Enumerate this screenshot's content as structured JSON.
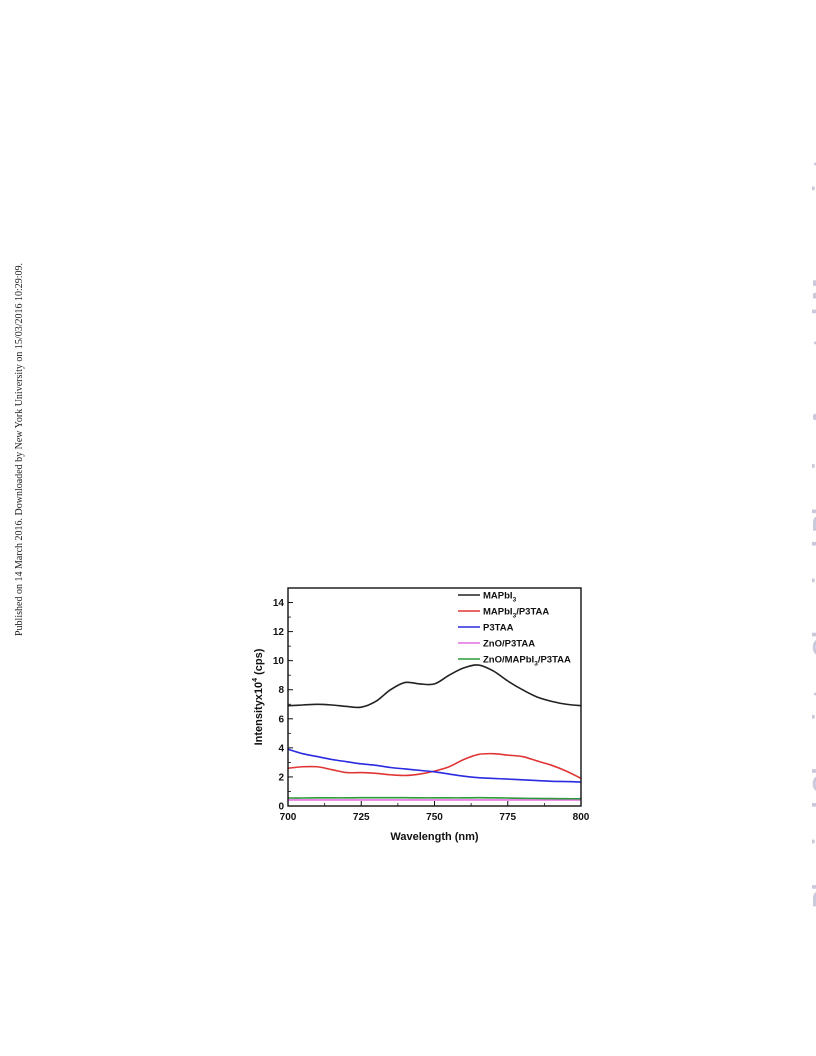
{
  "page": {
    "side_note": "Published on 14 March 2016. Downloaded by New York University on 15/03/2016 10:29:09.",
    "watermark": "Physical Chemistry Chemical Physics Accepted Manuscript"
  },
  "chart_data": {
    "type": "line",
    "xlabel": "Wavelength (nm)",
    "ylabel": "Intensityx10",
    "ylabel_sup": "4",
    "ylabel_unit": " (cps)",
    "xlim": [
      700,
      800
    ],
    "ylim": [
      0,
      15
    ],
    "xticks": [
      700,
      725,
      750,
      775,
      800
    ],
    "yticks": [
      0,
      2,
      4,
      6,
      8,
      10,
      12,
      14
    ],
    "grid": false,
    "legend": "top-right",
    "x": [
      700,
      705,
      710,
      715,
      720,
      725,
      730,
      735,
      740,
      745,
      750,
      755,
      760,
      765,
      770,
      775,
      780,
      785,
      790,
      795,
      800
    ],
    "series": [
      {
        "name": "MAPbI",
        "sub": "3",
        "suffix": "",
        "color": "#222222",
        "values": [
          6.9,
          6.95,
          7.0,
          6.95,
          6.85,
          6.8,
          7.2,
          8.0,
          8.5,
          8.4,
          8.4,
          9.0,
          9.5,
          9.7,
          9.3,
          8.6,
          8.0,
          7.5,
          7.2,
          7.0,
          6.9
        ]
      },
      {
        "name": "MAPbI",
        "sub": "3",
        "suffix": "/P3TAA",
        "color": "#e03535",
        "values": [
          2.6,
          2.7,
          2.7,
          2.5,
          2.3,
          2.3,
          2.25,
          2.15,
          2.1,
          2.2,
          2.4,
          2.7,
          3.2,
          3.55,
          3.6,
          3.5,
          3.4,
          3.1,
          2.8,
          2.4,
          1.9
        ]
      },
      {
        "name": "P3TAA",
        "sub": "",
        "suffix": "",
        "color": "#2a2ae0",
        "values": [
          3.9,
          3.6,
          3.4,
          3.2,
          3.05,
          2.9,
          2.8,
          2.65,
          2.55,
          2.45,
          2.35,
          2.2,
          2.05,
          1.95,
          1.9,
          1.85,
          1.8,
          1.75,
          1.7,
          1.68,
          1.65
        ]
      },
      {
        "name": "ZnO/P3TAA",
        "sub": "",
        "suffix": "",
        "color": "#e46ee4",
        "values": [
          0.42,
          0.42,
          0.42,
          0.42,
          0.42,
          0.42,
          0.42,
          0.42,
          0.42,
          0.42,
          0.42,
          0.42,
          0.42,
          0.42,
          0.42,
          0.42,
          0.42,
          0.42,
          0.42,
          0.42,
          0.42
        ]
      },
      {
        "name": "ZnO/MAPbI",
        "sub": "3",
        "suffix": "/P3TAA",
        "color": "#2a9a3a",
        "values": [
          0.55,
          0.55,
          0.56,
          0.56,
          0.56,
          0.57,
          0.57,
          0.57,
          0.57,
          0.56,
          0.56,
          0.56,
          0.56,
          0.57,
          0.56,
          0.55,
          0.53,
          0.52,
          0.51,
          0.5,
          0.5
        ]
      }
    ]
  }
}
